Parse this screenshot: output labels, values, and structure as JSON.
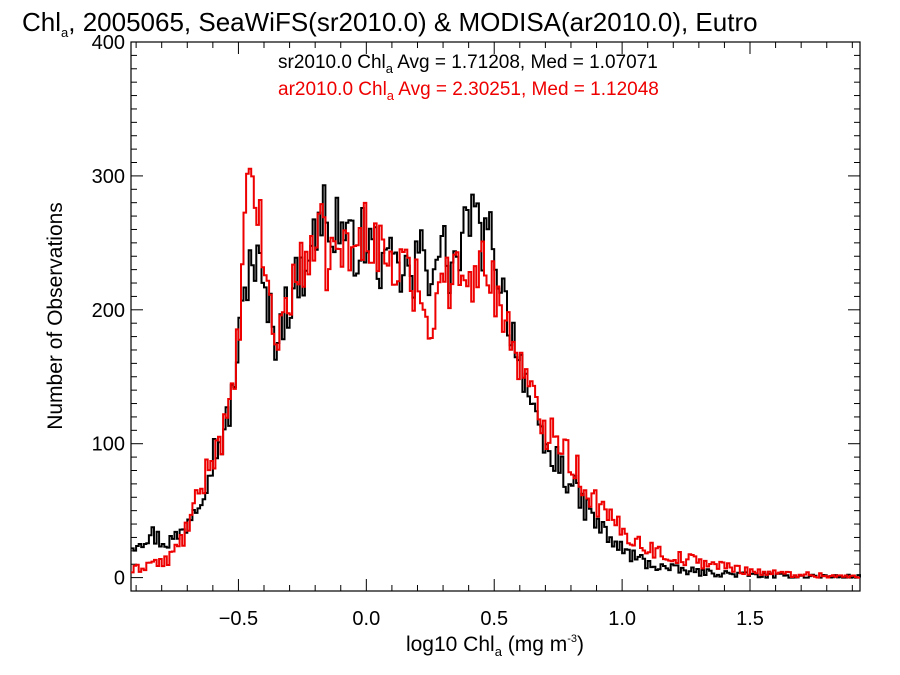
{
  "chart_data": {
    "type": "line",
    "title": {
      "prefix": "Chl",
      "subscript": "a",
      "suffix": ", 2005065, SeaWiFS(sr2010.0) & MODISA(ar2010.0), Eutro"
    },
    "xlabel": {
      "prefix": "log10 Chl",
      "subscript": "a",
      "middle": " (mg m",
      "superscript": "-3",
      "suffix": ")"
    },
    "ylabel": "Number of Observations",
    "xlim": [
      -0.92,
      1.93
    ],
    "ylim": [
      -10,
      400
    ],
    "xticks": [
      -0.5,
      0.0,
      0.5,
      1.0,
      1.5
    ],
    "xtick_labels": [
      "−0.5",
      "0.0",
      "0.5",
      "1.0",
      "1.5"
    ],
    "yticks": [
      0,
      100,
      200,
      300,
      400
    ],
    "ytick_labels": [
      "0",
      "100",
      "200",
      "300",
      "400"
    ],
    "legend": [
      {
        "prefix": "sr2010.0 Chl",
        "subscript": "a",
        "suffix": " Avg = 1.71208, Med = 1.07071",
        "color": "#000000"
      },
      {
        "prefix": "ar2010.0 Chl",
        "subscript": "a",
        "suffix": " Avg = 2.30251, Med = 1.12048",
        "color": "#ee0000"
      }
    ],
    "legend_position": "top-center",
    "bin_width": 0.01,
    "series": [
      {
        "color": "#000000",
        "points": [
          [
            -0.92,
            25
          ],
          [
            -0.88,
            30
          ],
          [
            -0.84,
            32
          ],
          [
            -0.8,
            27
          ],
          [
            -0.76,
            28
          ],
          [
            -0.72,
            35
          ],
          [
            -0.7,
            45
          ],
          [
            -0.66,
            60
          ],
          [
            -0.62,
            80
          ],
          [
            -0.6,
            95
          ],
          [
            -0.56,
            105
          ],
          [
            -0.53,
            135
          ],
          [
            -0.5,
            180
          ],
          [
            -0.48,
            210
          ],
          [
            -0.46,
            240
          ],
          [
            -0.44,
            235
          ],
          [
            -0.42,
            230
          ],
          [
            -0.4,
            205
          ],
          [
            -0.38,
            195
          ],
          [
            -0.36,
            180
          ],
          [
            -0.33,
            195
          ],
          [
            -0.3,
            210
          ],
          [
            -0.27,
            225
          ],
          [
            -0.25,
            230
          ],
          [
            -0.22,
            260
          ],
          [
            -0.2,
            245
          ],
          [
            -0.18,
            270
          ],
          [
            -0.16,
            285
          ],
          [
            -0.14,
            240
          ],
          [
            -0.12,
            270
          ],
          [
            -0.1,
            260
          ],
          [
            -0.08,
            250
          ],
          [
            -0.05,
            245
          ],
          [
            -0.02,
            255
          ],
          [
            0.0,
            245
          ],
          [
            0.02,
            250
          ],
          [
            0.05,
            235
          ],
          [
            0.08,
            225
          ],
          [
            0.1,
            245
          ],
          [
            0.12,
            220
          ],
          [
            0.14,
            235
          ],
          [
            0.16,
            225
          ],
          [
            0.18,
            215
          ],
          [
            0.2,
            250
          ],
          [
            0.22,
            235
          ],
          [
            0.24,
            225
          ],
          [
            0.26,
            245
          ],
          [
            0.28,
            240
          ],
          [
            0.3,
            245
          ],
          [
            0.32,
            230
          ],
          [
            0.34,
            235
          ],
          [
            0.36,
            240
          ],
          [
            0.38,
            255
          ],
          [
            0.4,
            275
          ],
          [
            0.42,
            270
          ],
          [
            0.44,
            250
          ],
          [
            0.46,
            250
          ],
          [
            0.48,
            255
          ],
          [
            0.5,
            245
          ],
          [
            0.52,
            220
          ],
          [
            0.54,
            205
          ],
          [
            0.56,
            190
          ],
          [
            0.58,
            175
          ],
          [
            0.6,
            160
          ],
          [
            0.62,
            150
          ],
          [
            0.64,
            125
          ],
          [
            0.66,
            110
          ],
          [
            0.68,
            100
          ],
          [
            0.7,
            95
          ],
          [
            0.72,
            85
          ],
          [
            0.74,
            90
          ],
          [
            0.76,
            80
          ],
          [
            0.78,
            75
          ],
          [
            0.8,
            70
          ],
          [
            0.82,
            60
          ],
          [
            0.84,
            55
          ],
          [
            0.86,
            50
          ],
          [
            0.88,
            45
          ],
          [
            0.9,
            40
          ],
          [
            0.92,
            35
          ],
          [
            0.95,
            28
          ],
          [
            1.0,
            20
          ],
          [
            1.05,
            15
          ],
          [
            1.1,
            10
          ],
          [
            1.15,
            8
          ],
          [
            1.2,
            6
          ],
          [
            1.3,
            4
          ],
          [
            1.4,
            3
          ],
          [
            1.5,
            2
          ],
          [
            1.6,
            1
          ],
          [
            1.75,
            1
          ],
          [
            1.93,
            0
          ]
        ]
      },
      {
        "color": "#ee0000",
        "points": [
          [
            -0.92,
            5
          ],
          [
            -0.88,
            8
          ],
          [
            -0.84,
            12
          ],
          [
            -0.8,
            10
          ],
          [
            -0.76,
            18
          ],
          [
            -0.72,
            30
          ],
          [
            -0.7,
            40
          ],
          [
            -0.66,
            60
          ],
          [
            -0.62,
            85
          ],
          [
            -0.6,
            95
          ],
          [
            -0.56,
            110
          ],
          [
            -0.53,
            130
          ],
          [
            -0.5,
            190
          ],
          [
            -0.48,
            260
          ],
          [
            -0.46,
            300
          ],
          [
            -0.44,
            290
          ],
          [
            -0.42,
            260
          ],
          [
            -0.4,
            230
          ],
          [
            -0.38,
            200
          ],
          [
            -0.36,
            175
          ],
          [
            -0.33,
            195
          ],
          [
            -0.3,
            215
          ],
          [
            -0.27,
            225
          ],
          [
            -0.25,
            235
          ],
          [
            -0.22,
            250
          ],
          [
            -0.2,
            240
          ],
          [
            -0.18,
            260
          ],
          [
            -0.16,
            235
          ],
          [
            -0.14,
            245
          ],
          [
            -0.12,
            240
          ],
          [
            -0.1,
            250
          ],
          [
            -0.08,
            240
          ],
          [
            -0.05,
            245
          ],
          [
            -0.02,
            255
          ],
          [
            0.0,
            265
          ],
          [
            0.02,
            250
          ],
          [
            0.05,
            245
          ],
          [
            0.08,
            240
          ],
          [
            0.1,
            230
          ],
          [
            0.12,
            225
          ],
          [
            0.14,
            240
          ],
          [
            0.16,
            220
          ],
          [
            0.18,
            215
          ],
          [
            0.2,
            235
          ],
          [
            0.22,
            200
          ],
          [
            0.24,
            180
          ],
          [
            0.26,
            205
          ],
          [
            0.28,
            220
          ],
          [
            0.3,
            230
          ],
          [
            0.32,
            215
          ],
          [
            0.34,
            225
          ],
          [
            0.36,
            230
          ],
          [
            0.38,
            240
          ],
          [
            0.4,
            230
          ],
          [
            0.42,
            220
          ],
          [
            0.44,
            235
          ],
          [
            0.46,
            230
          ],
          [
            0.48,
            225
          ],
          [
            0.5,
            215
          ],
          [
            0.52,
            205
          ],
          [
            0.54,
            190
          ],
          [
            0.56,
            180
          ],
          [
            0.58,
            170
          ],
          [
            0.6,
            160
          ],
          [
            0.62,
            145
          ],
          [
            0.64,
            135
          ],
          [
            0.66,
            125
          ],
          [
            0.68,
            115
          ],
          [
            0.7,
            110
          ],
          [
            0.72,
            120
          ],
          [
            0.74,
            110
          ],
          [
            0.76,
            100
          ],
          [
            0.78,
            95
          ],
          [
            0.8,
            85
          ],
          [
            0.82,
            80
          ],
          [
            0.84,
            70
          ],
          [
            0.86,
            65
          ],
          [
            0.88,
            60
          ],
          [
            0.9,
            55
          ],
          [
            0.92,
            50
          ],
          [
            0.95,
            42
          ],
          [
            1.0,
            35
          ],
          [
            1.05,
            28
          ],
          [
            1.1,
            22
          ],
          [
            1.15,
            18
          ],
          [
            1.2,
            15
          ],
          [
            1.3,
            12
          ],
          [
            1.4,
            8
          ],
          [
            1.5,
            5
          ],
          [
            1.6,
            3
          ],
          [
            1.75,
            2
          ],
          [
            1.93,
            0
          ]
        ]
      }
    ]
  }
}
